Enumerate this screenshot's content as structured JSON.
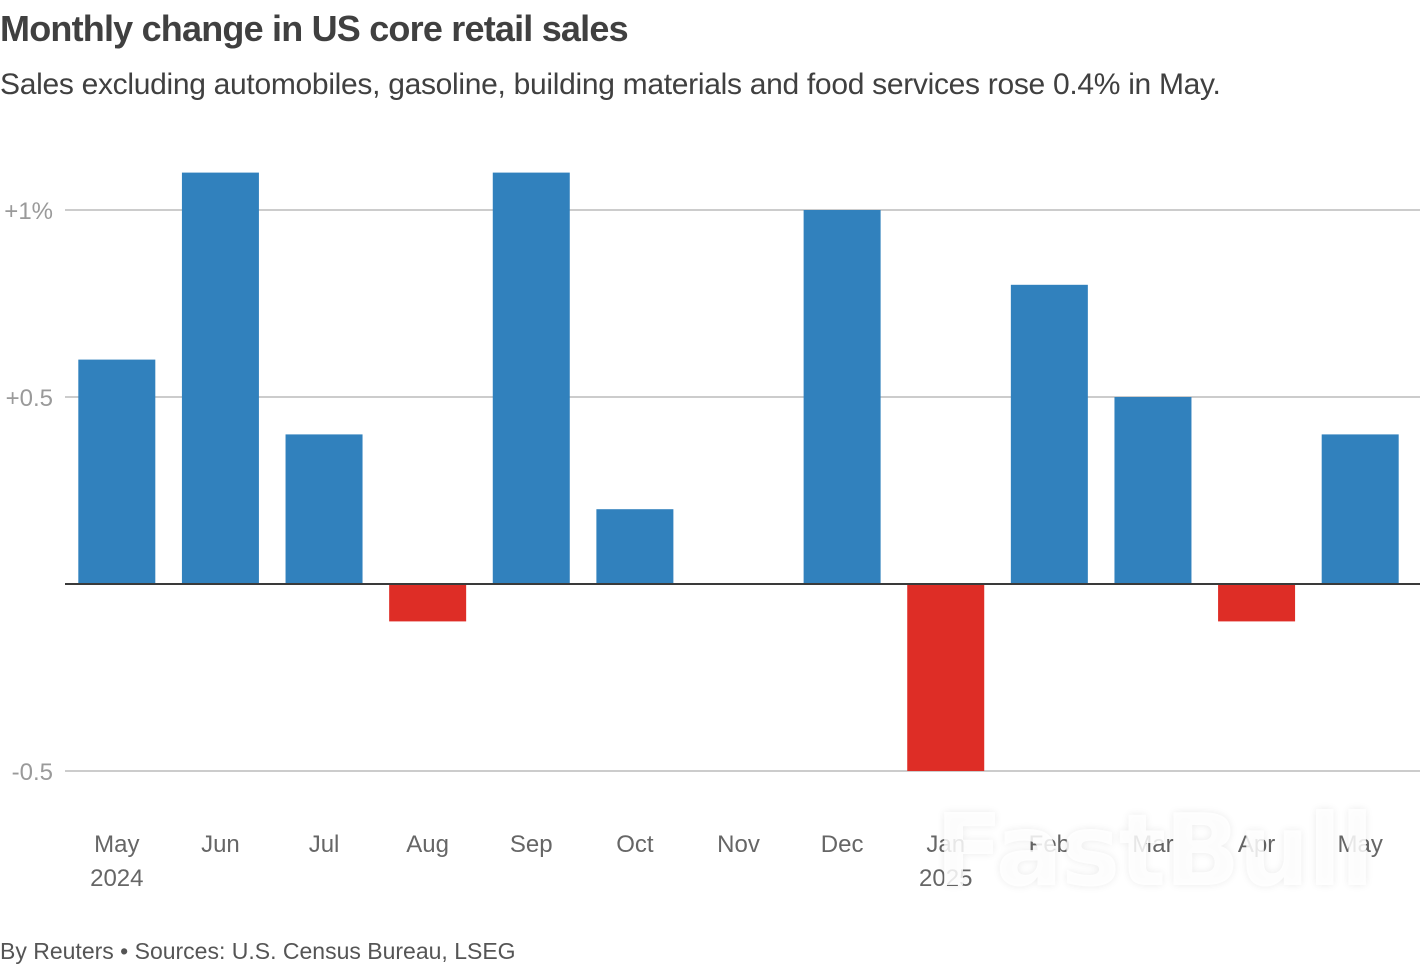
{
  "title": "Monthly change in US core retail sales",
  "subtitle": "Sales excluding automobiles, gasoline, building materials and food services rose 0.4% in May.",
  "footer": "By Reuters • Sources: U.S. Census Bureau, LSEG",
  "watermark": "FastBull",
  "colors": {
    "positive": "#3181bd",
    "negative": "#de2d26",
    "grid": "#cccccc",
    "baseline": "#3a3a3a"
  },
  "chart_data": {
    "type": "bar",
    "title": "Monthly change in US core retail sales",
    "subtitle": "Sales excluding automobiles, gasoline, building materials and food services rose 0.4% in May.",
    "xlabel": "",
    "ylabel": "",
    "unit": "%",
    "categories": [
      "May",
      "Jun",
      "Jul",
      "Aug",
      "Sep",
      "Oct",
      "Nov",
      "Dec",
      "Jan",
      "Feb",
      "Mar",
      "Apr",
      "May"
    ],
    "category_sublabels": [
      "2024",
      "",
      "",
      "",
      "",
      "",
      "",
      "",
      "2025",
      "",
      "",
      "",
      ""
    ],
    "values": [
      0.6,
      1.1,
      0.4,
      -0.1,
      1.1,
      0.2,
      0.0,
      1.0,
      -0.5,
      0.8,
      0.5,
      -0.1,
      0.4
    ],
    "ylim": [
      -0.6,
      1.2
    ],
    "yticks": [
      {
        "value": 1.0,
        "label": "+1%"
      },
      {
        "value": 0.5,
        "label": "+0.5"
      },
      {
        "value": -0.5,
        "label": "-0.5"
      }
    ],
    "grid": true,
    "legend": "none",
    "source": "By Reuters • Sources: U.S. Census Bureau, LSEG"
  }
}
